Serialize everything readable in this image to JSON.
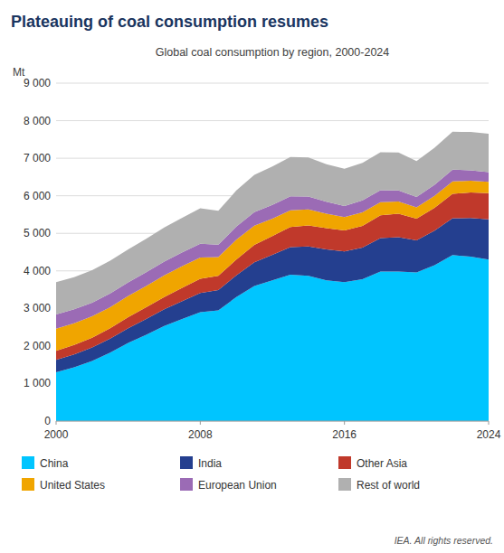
{
  "chart_data": {
    "type": "area",
    "stacked": true,
    "title": "Plateauing of coal consumption resumes",
    "subtitle": "Global coal consumption by region, 2000-2024",
    "ylabel": "Mt",
    "annotations": [
      "IEA. All rights reserved."
    ],
    "x": [
      2000,
      2001,
      2002,
      2003,
      2004,
      2005,
      2006,
      2007,
      2008,
      2009,
      2010,
      2011,
      2012,
      2013,
      2014,
      2015,
      2016,
      2017,
      2018,
      2019,
      2020,
      2021,
      2022,
      2023,
      2024
    ],
    "series": [
      {
        "name": "China",
        "color": "#00C5FF",
        "values": [
          1300,
          1430,
          1600,
          1820,
          2080,
          2300,
          2530,
          2720,
          2900,
          2950,
          3300,
          3600,
          3750,
          3900,
          3870,
          3750,
          3700,
          3780,
          3980,
          3980,
          3960,
          4150,
          4420,
          4380,
          4300
        ]
      },
      {
        "name": "India",
        "color": "#243F8F",
        "values": [
          330,
          345,
          360,
          375,
          395,
          420,
          445,
          475,
          510,
          540,
          580,
          630,
          680,
          730,
          780,
          820,
          820,
          840,
          890,
          920,
          850,
          920,
          980,
          1030,
          1070
        ]
      },
      {
        "name": "Other Asia",
        "color": "#C0392B",
        "values": [
          240,
          250,
          260,
          275,
          290,
          310,
          330,
          355,
          380,
          380,
          420,
          460,
          500,
          540,
          560,
          570,
          560,
          580,
          610,
          620,
          580,
          610,
          650,
          680,
          700
        ]
      },
      {
        "name": "United States",
        "color": "#F0A500",
        "values": [
          590,
          580,
          570,
          565,
          565,
          570,
          575,
          575,
          565,
          500,
          530,
          515,
          460,
          445,
          425,
          380,
          350,
          360,
          350,
          330,
          300,
          320,
          335,
          310,
          300
        ]
      },
      {
        "name": "European Union",
        "color": "#9B6BB5",
        "values": [
          380,
          370,
          365,
          365,
          365,
          365,
          370,
          370,
          365,
          330,
          350,
          360,
          370,
          370,
          345,
          320,
          300,
          315,
          320,
          295,
          275,
          290,
          310,
          280,
          260
        ]
      },
      {
        "name": "Rest of world",
        "color": "#B0B0B0",
        "values": [
          860,
          855,
          865,
          870,
          880,
          890,
          905,
          920,
          945,
          900,
          960,
          990,
          1020,
          1050,
          1040,
          1000,
          990,
          1000,
          1010,
          1010,
          960,
          990,
          1010,
          1020,
          1020
        ]
      }
    ],
    "xlim": [
      2000,
      2024
    ],
    "xticks": [
      2000,
      2008,
      2016,
      2024
    ],
    "ylim": [
      0,
      9000
    ],
    "yticks": [
      0,
      {
        "value": 1000,
        "label": "1 000"
      },
      {
        "value": 2000,
        "label": "2 000"
      },
      {
        "value": 3000,
        "label": "3 000"
      },
      {
        "value": 4000,
        "label": "4 000"
      },
      {
        "value": 5000,
        "label": "5 000"
      },
      {
        "value": 6000,
        "label": "6 000"
      },
      {
        "value": 7000,
        "label": "7 000"
      },
      {
        "value": 8000,
        "label": "8 000"
      },
      {
        "value": 9000,
        "label": "9 000"
      }
    ],
    "grid": true,
    "legend": "bottom"
  }
}
